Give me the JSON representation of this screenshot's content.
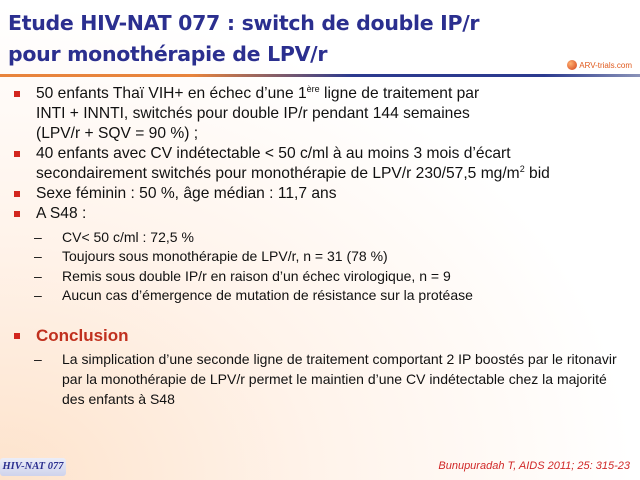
{
  "title": {
    "line1": "Etude HIV-NAT 077 : switch de double IP/r",
    "line2": "pour monothérapie de LPV/r"
  },
  "logo": {
    "text": "ARV-trials.com"
  },
  "bullets": [
    {
      "pre": "50 enfants Thaï VIH+ en échec d’une 1",
      "sup": "ère",
      "post": " ligne de traitement par",
      "line2": "INTI + INNTI, switchés pour double IP/r pendant 144 semaines",
      "line3": "(LPV/r + SQV = 90 %) ;"
    },
    {
      "line1": "40 enfants avec CV indétectable < 50 c/ml à au moins 3 mois d’écart",
      "pre": "secondairement switchés pour monothérapie de LPV/r 230/57,5 mg/m",
      "sup": "2",
      "post": " bid"
    },
    {
      "text": "Sexe féminin : 50 %, âge médian : 11,7 ans"
    },
    {
      "text": "A S48 :",
      "sub": [
        "CV< 50 c/ml : 72,5 %",
        "Toujours sous monothérapie de LPV/r, n = 31 (78 %)",
        "Remis sous double IP/r en raison d’un échec virologique, n = 9",
        "Aucun cas d’émergence de mutation de résistance sur la protéase"
      ]
    }
  ],
  "conclusion": {
    "heading": "Conclusion",
    "text": "La simplication d’une seconde ligne de traitement comportant 2 IP boostés par le ritonavir par la monothérapie de LPV/r permet le maintien d’une CV indétectable chez la majorité des enfants à S48"
  },
  "footer": {
    "tag": "HIV-NAT 077",
    "citation": "Bunupuradah T, AIDS 2011; 25: 315-23"
  },
  "colors": {
    "title": "#2b2f8f",
    "bullet": "#d2261e",
    "conclusion": "#c0301e",
    "citation": "#d02828"
  }
}
